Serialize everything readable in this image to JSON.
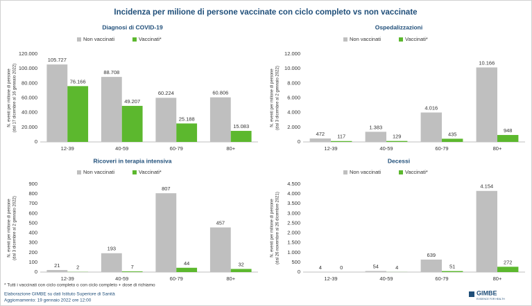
{
  "title": "Incidenza per milione di persone vaccinate con ciclo completo vs non vaccinate",
  "chart_data": [
    {
      "type": "bar",
      "title": "Diagnosi di COVID-19",
      "ylabel": [
        "N. eventi per milione di persone",
        "(dal 17 dicembre al 16 gennaio 2022)"
      ],
      "categories": [
        "12-39",
        "40-59",
        "60-79",
        "80+"
      ],
      "series": [
        {
          "name": "Non vaccinati",
          "color": "#bfbfbf",
          "values": [
            105727,
            88708,
            60224,
            60806
          ],
          "value_labels": [
            "105.727",
            "88.708",
            "60.224",
            "60.806"
          ]
        },
        {
          "name": "Vaccinati*",
          "color": "#5cb82e",
          "values": [
            76166,
            49207,
            25188,
            15083
          ],
          "value_labels": [
            "76.166",
            "49.207",
            "25.188",
            "15.083"
          ]
        }
      ],
      "ylim": [
        0,
        120000
      ],
      "yticks": [
        0,
        {
          "value": 20000,
          "label": "20.000"
        },
        {
          "value": 40000,
          "label": "40.000"
        },
        {
          "value": 60000,
          "label": "60.000"
        },
        {
          "value": 80000,
          "label": "80.000"
        },
        {
          "value": 100000,
          "label": "100.000"
        },
        {
          "value": 120000,
          "label": "120.000"
        }
      ],
      "grid": false,
      "legend": "top"
    },
    {
      "type": "bar",
      "title": "Ospedalizzazioni",
      "ylabel": [
        "N. eventi per milione di persone",
        "(dal 3 dicembre al 2 gennaio 2022)"
      ],
      "categories": [
        "12-39",
        "40-59",
        "60-79",
        "80+"
      ],
      "series": [
        {
          "name": "Non vaccinati",
          "color": "#bfbfbf",
          "values": [
            472,
            1383,
            4016,
            10166
          ],
          "value_labels": [
            "472",
            "1.383",
            "4.016",
            "10.166"
          ]
        },
        {
          "name": "Vaccinati*",
          "color": "#5cb82e",
          "values": [
            117,
            129,
            435,
            948
          ],
          "value_labels": [
            "117",
            "129",
            "435",
            "948"
          ]
        }
      ],
      "ylim": [
        0,
        12000
      ],
      "yticks": [
        0,
        {
          "value": 2000,
          "label": "2.000"
        },
        {
          "value": 4000,
          "label": "4.000"
        },
        {
          "value": 6000,
          "label": "6.000"
        },
        {
          "value": 8000,
          "label": "8.000"
        },
        {
          "value": 10000,
          "label": "10.000"
        },
        {
          "value": 12000,
          "label": "12.000"
        }
      ],
      "grid": false,
      "legend": "top"
    },
    {
      "type": "bar",
      "title": "Ricoveri in terapia intensiva",
      "ylabel": [
        "N. eventi per milione di persone",
        "(dal 3 dicembre al 2 gennaio 2022)"
      ],
      "categories": [
        "12-39",
        "40-59",
        "60-79",
        "80+"
      ],
      "series": [
        {
          "name": "Non vaccinati",
          "color": "#bfbfbf",
          "values": [
            21,
            193,
            807,
            457
          ]
        },
        {
          "name": "Vaccinati*",
          "color": "#5cb82e",
          "values": [
            2,
            7,
            44,
            32
          ]
        }
      ],
      "ylim": [
        0,
        900
      ],
      "yticks": [
        0,
        100,
        200,
        300,
        400,
        500,
        600,
        700,
        800,
        900
      ],
      "grid": false,
      "legend": "top"
    },
    {
      "type": "bar",
      "title": "Decessi",
      "ylabel": [
        "N. eventi per milione di persone",
        "(dal 26 novembre al 26 dicembre 2021)"
      ],
      "categories": [
        "12-39",
        "40-59",
        "60-79",
        "80+"
      ],
      "series": [
        {
          "name": "Non vaccinati",
          "color": "#bfbfbf",
          "values": [
            4,
            54,
            639,
            4154
          ],
          "value_labels": [
            "4",
            "54",
            "639",
            "4.154"
          ]
        },
        {
          "name": "Vaccinati*",
          "color": "#5cb82e",
          "values": [
            0,
            4,
            51,
            272
          ]
        }
      ],
      "ylim": [
        0,
        4500
      ],
      "yticks": [
        0,
        500,
        {
          "value": 1000,
          "label": "1.000"
        },
        {
          "value": 1500,
          "label": "1.500"
        },
        {
          "value": 2000,
          "label": "2.000"
        },
        {
          "value": 2500,
          "label": "2.500"
        },
        {
          "value": 3000,
          "label": "3.000"
        },
        {
          "value": 3500,
          "label": "3.500"
        },
        {
          "value": 4000,
          "label": "4.000"
        },
        {
          "value": 4500,
          "label": "4.500"
        }
      ],
      "grid": false,
      "legend": "top"
    }
  ],
  "footnote": "* Tutti i vaccinati con ciclo completo o con ciclo completo +  dose di richiamo",
  "source": "Elaborazione GIMBE su dati Istituto Superiore di Sanità",
  "updated": "Aggiornamento: 19 gennaio 2022 ore 12:00",
  "logo": {
    "name": "GIMBE",
    "tagline": "EVIDENCE FOR HEALTH"
  }
}
